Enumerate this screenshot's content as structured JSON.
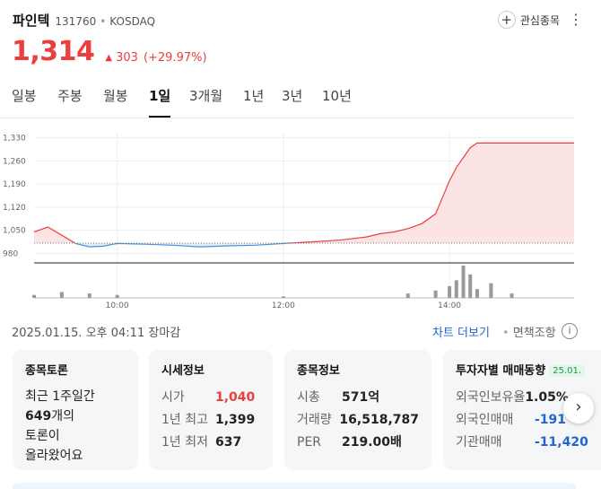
{
  "header": {
    "name": "파인텍",
    "code": "131760",
    "market": "KOSDAQ",
    "favorite_label": "관심종목",
    "more_glyph": "⋮"
  },
  "price": {
    "current": "1,314",
    "change_arrow": "▲",
    "change": "303",
    "change_pct": "(+29.97%)",
    "color": "#eb3e3e"
  },
  "tabs": [
    "일봉",
    "주봉",
    "월봉",
    "1일",
    "3개월",
    "1년",
    "3년",
    "10년"
  ],
  "active_tab": "1일",
  "chart_data": {
    "type": "line",
    "y_ticks": [
      "1,330",
      "1,260",
      "1,190",
      "1,120",
      "1,050",
      "980"
    ],
    "ylim": [
      965,
      1345
    ],
    "prev_close": 1011,
    "x_ticks": [
      "10:00",
      "12:00",
      "14:00"
    ],
    "x_range": [
      "09:00",
      "15:30"
    ],
    "series": [
      {
        "x": [
          "09:00",
          "09:10",
          "09:20",
          "09:30",
          "09:40",
          "09:50",
          "10:00",
          "10:20",
          "10:40",
          "11:00",
          "11:20",
          "11:40",
          "12:00",
          "12:20",
          "12:40",
          "13:00",
          "13:10",
          "13:20",
          "13:30",
          "13:40",
          "13:50",
          "13:55",
          "14:00",
          "14:05",
          "14:10",
          "14:15",
          "14:20",
          "14:30",
          "15:00",
          "15:30"
        ],
        "values": [
          1045,
          1060,
          1035,
          1010,
          1000,
          1002,
          1010,
          1008,
          1005,
          1000,
          1003,
          1005,
          1010,
          1015,
          1020,
          1030,
          1040,
          1045,
          1055,
          1070,
          1100,
          1150,
          1200,
          1240,
          1270,
          1300,
          1314,
          1314,
          1314,
          1314
        ]
      }
    ],
    "volume": {
      "x": [
        "09:00",
        "09:20",
        "09:40",
        "10:00",
        "12:00",
        "13:30",
        "13:50",
        "14:00",
        "14:05",
        "14:10",
        "14:15",
        "14:20",
        "14:30",
        "14:45"
      ],
      "values": [
        2,
        4,
        3,
        2,
        1,
        3,
        5,
        8,
        12,
        22,
        16,
        6,
        10,
        3
      ]
    },
    "colors": {
      "up_line": "#e84141",
      "up_fill": "#fde4e4",
      "down_line": "#4a90d9",
      "down_fill": "#e3eefb"
    }
  },
  "status": {
    "datetime": "2025.01.15. 오후 04:11",
    "state": "장마감",
    "chart_link": "차트 더보기",
    "disclaimer": "면책조항",
    "info_glyph": "i"
  },
  "cards": {
    "discussion": {
      "title": "종목토론",
      "line1": "최근 1주일간",
      "count": "649",
      "line2": "개의",
      "line3": "토론이",
      "line4": "올라왔어요"
    },
    "market_info": {
      "title": "시세정보",
      "rows": [
        {
          "label": "시가",
          "value": "1,040",
          "color": "#eb3e3e"
        },
        {
          "label": "1년 최고",
          "value": "1,399",
          "color": "#222222"
        },
        {
          "label": "1년 최저",
          "value": "637",
          "color": "#222222"
        }
      ]
    },
    "stock_info": {
      "title": "종목정보",
      "rows": [
        {
          "label": "시총",
          "value": "571억"
        },
        {
          "label": "거래량",
          "value": "16,518,787"
        },
        {
          "label": "PER",
          "value": "219.00배"
        }
      ]
    },
    "investor": {
      "title": "투자자별 매매동향",
      "badge": "25.01.",
      "rows": [
        {
          "label": "외국인보유율",
          "value": "1.05%",
          "color": "#222222"
        },
        {
          "label": "외국인매매",
          "value": "-191",
          "color": "#2266cc"
        },
        {
          "label": "기관매매",
          "value": "-11,420",
          "color": "#2266cc"
        }
      ]
    }
  },
  "next_glyph": "›"
}
